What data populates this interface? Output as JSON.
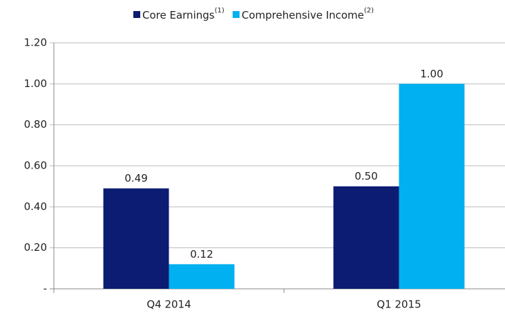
{
  "chart_data": {
    "type": "bar",
    "categories": [
      "Q4 2014",
      "Q1 2015"
    ],
    "series": [
      {
        "name": "Core Earnings",
        "footnote": "(1)",
        "color": "#0b1c72",
        "values": [
          0.49,
          0.5
        ],
        "value_labels": [
          "0.49",
          "0.50"
        ]
      },
      {
        "name": "Comprehensive Income",
        "footnote": "(2)",
        "color": "#00b0f0",
        "values": [
          0.12,
          1.0
        ],
        "value_labels": [
          "0.12",
          "1.00"
        ]
      }
    ],
    "ylim": [
      0,
      1.2
    ],
    "yticks": [
      {
        "value": 0,
        "label": "-"
      },
      {
        "value": 0.2,
        "label": "0.20"
      },
      {
        "value": 0.4,
        "label": "0.40"
      },
      {
        "value": 0.6,
        "label": "0.60"
      },
      {
        "value": 0.8,
        "label": "0.80"
      },
      {
        "value": 1.0,
        "label": "1.00"
      },
      {
        "value": 1.2,
        "label": "1.20"
      }
    ],
    "grid": true,
    "legend": "top"
  }
}
